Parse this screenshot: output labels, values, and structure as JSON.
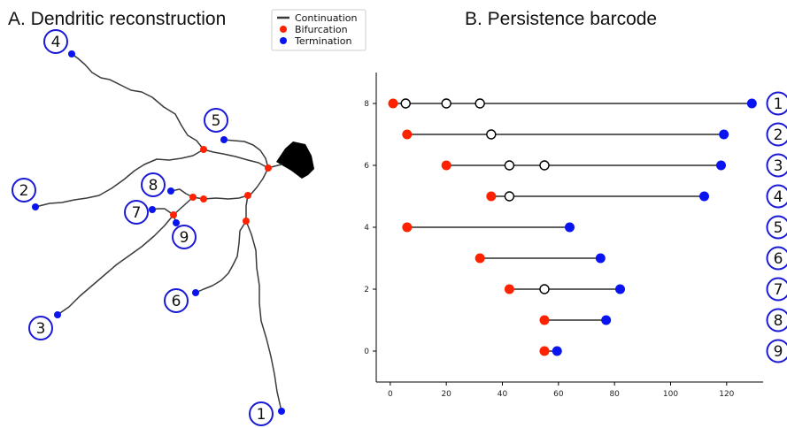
{
  "panel_a": {
    "title": "A. Dendritic reconstruction",
    "branch_numbers": [
      "1",
      "2",
      "3",
      "4",
      "5",
      "6",
      "7",
      "8",
      "9"
    ]
  },
  "panel_b": {
    "title": "B. Persistence barcode"
  },
  "legend": {
    "continuation": "Continuation",
    "bifurcation": "Bifurcation",
    "termination": "Termination"
  },
  "colors": {
    "bifurcation": "#ff2200",
    "termination": "#0a14f0",
    "branch_circle": "#1a1ad6",
    "line": "#000000",
    "neurite": "#3a3a3a"
  },
  "chart_data": {
    "type": "barcode",
    "xlim": [
      -5,
      133
    ],
    "ylim": [
      -1,
      9
    ],
    "x_ticks": [
      0,
      20,
      40,
      60,
      80,
      100,
      120
    ],
    "y_ticks": [
      0,
      2,
      4,
      6,
      8
    ],
    "bars": [
      {
        "label": "1",
        "y": 8,
        "start": 1,
        "end": 129,
        "continuations": [
          5.5,
          20,
          32
        ]
      },
      {
        "label": "2",
        "y": 7,
        "start": 6,
        "end": 119,
        "continuations": [
          36
        ]
      },
      {
        "label": "3",
        "y": 6,
        "start": 20,
        "end": 118,
        "continuations": [
          42.5,
          55
        ]
      },
      {
        "label": "4",
        "y": 5,
        "start": 36,
        "end": 112,
        "continuations": [
          42.5
        ]
      },
      {
        "label": "5",
        "y": 4,
        "start": 6,
        "end": 64,
        "continuations": []
      },
      {
        "label": "6",
        "y": 3,
        "start": 32,
        "end": 75,
        "continuations": []
      },
      {
        "label": "7",
        "y": 2,
        "start": 42.5,
        "end": 82,
        "continuations": [
          55
        ]
      },
      {
        "label": "8",
        "y": 1,
        "start": 55,
        "end": 77,
        "continuations": []
      },
      {
        "label": "9",
        "y": 0,
        "start": 55,
        "end": 59.5,
        "continuations": []
      }
    ]
  }
}
